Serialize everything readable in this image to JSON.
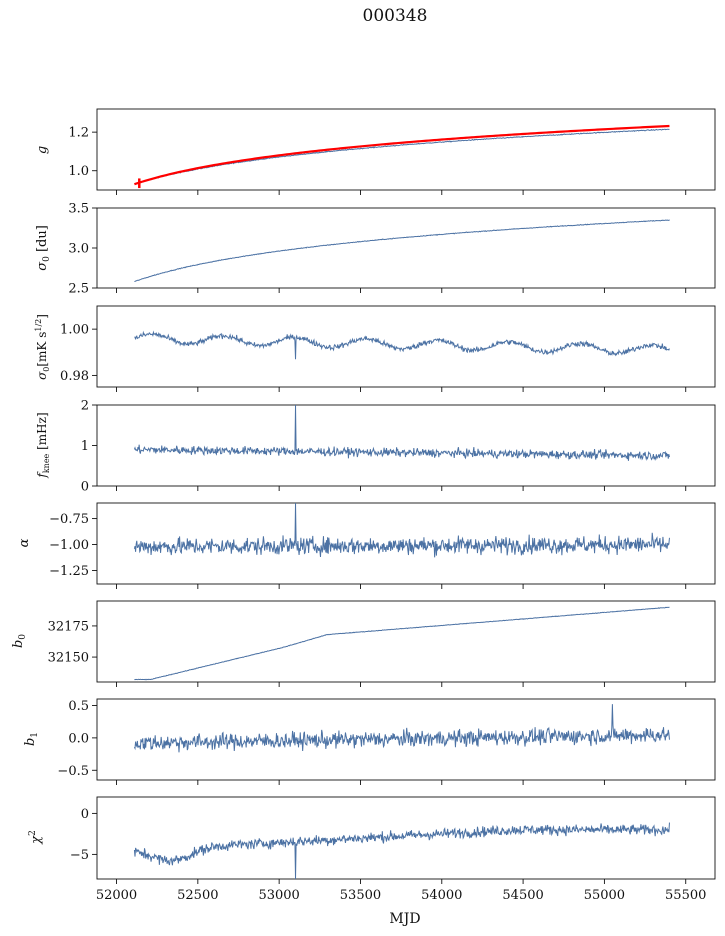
{
  "figure": {
    "title": "000348",
    "xlabel": "MJD"
  },
  "chart_data": {
    "type": "line",
    "x_ticks": [
      52000,
      52500,
      53000,
      53500,
      54000,
      54500,
      55000,
      55500
    ],
    "x_range": [
      51880,
      55680
    ],
    "x_data_range": [
      52110,
      55400
    ],
    "series_color": "#4c72a4",
    "fit_color": "#ff0000",
    "panels": [
      {
        "id": "g",
        "ylabel": "g",
        "ylim": [
          0.9,
          1.32
        ],
        "yticks": [
          1.0,
          1.2
        ],
        "tick_labels": [
          "1.0",
          "1.2"
        ],
        "trend": {
          "type": "log",
          "start": 0.93,
          "end": 1.215
        },
        "noise": 0.002,
        "fit": {
          "start": 0.93,
          "end": 1.232
        }
      },
      {
        "id": "sigma0du",
        "ylabel": "σ0 [du]",
        "ylim": [
          2.5,
          3.5
        ],
        "yticks": [
          2.5,
          3.0,
          3.5
        ],
        "tick_labels": [
          "2.5",
          "3.0",
          "3.5"
        ],
        "trend": {
          "type": "log",
          "start": 2.58,
          "end": 3.35
        },
        "noise": 0.004
      },
      {
        "id": "sigma0mk",
        "ylabel": "σ0[mK s1/2]",
        "ylim": [
          0.975,
          1.01
        ],
        "yticks": [
          0.98,
          1.0
        ],
        "tick_labels": [
          "0.98",
          "1.00"
        ],
        "trend": {
          "type": "wave",
          "start": 0.996,
          "end": 0.991
        },
        "noise": 0.0011,
        "spike_at": 53100,
        "spike_to": 0.987
      },
      {
        "id": "fknee",
        "ylabel": "fknee [mHz]",
        "ylim": [
          0,
          2
        ],
        "yticks": [
          0,
          1,
          2
        ],
        "tick_labels": [
          "0",
          "1",
          "2"
        ],
        "trend": {
          "type": "flat",
          "start": 0.9,
          "end": 0.75
        },
        "noise": 0.1,
        "spike_at": 53100,
        "spike_to": 2.0
      },
      {
        "id": "alpha",
        "ylabel": "α",
        "ylim": [
          -1.38,
          -0.6
        ],
        "yticks": [
          -1.25,
          -1.0,
          -0.75
        ],
        "tick_labels": [
          "−1.25",
          "−1.00",
          "−0.75"
        ],
        "trend": {
          "type": "flat",
          "start": -1.02,
          "end": -1.0
        },
        "noise": 0.08,
        "spike_at": 53100,
        "spike_to": -0.6
      },
      {
        "id": "b0",
        "ylabel": "b0",
        "ylim": [
          32130,
          32195
        ],
        "yticks": [
          32150,
          32175
        ],
        "tick_labels": [
          "32150",
          "32175"
        ],
        "trend": {
          "type": "knee",
          "start": 32132,
          "end": 32190
        },
        "noise": 0.2
      },
      {
        "id": "b1",
        "ylabel": "b1",
        "ylim": [
          -0.65,
          0.6
        ],
        "yticks": [
          -0.5,
          0.0,
          0.5
        ],
        "tick_labels": [
          "−0.5",
          "0.0",
          "0.5"
        ],
        "trend": {
          "type": "flat",
          "start": -0.08,
          "end": 0.05
        },
        "noise": 0.12,
        "spike_at": 55050,
        "spike_to": 0.52
      },
      {
        "id": "chi2",
        "ylabel": "χ2",
        "ylim": [
          -8,
          2
        ],
        "yticks": [
          -5,
          0
        ],
        "tick_labels": [
          "−5",
          "0"
        ],
        "trend": {
          "type": "chi",
          "start": -4.5,
          "end": -2.0
        },
        "noise": 0.6,
        "spike_at": 53100,
        "spike_to": -8.0
      }
    ]
  }
}
